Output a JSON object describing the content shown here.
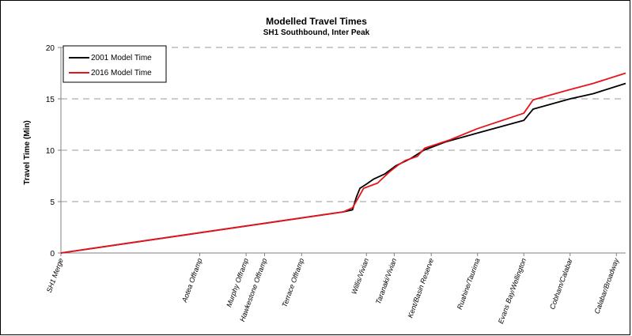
{
  "chart_data": {
    "type": "line",
    "title": "Modelled Travel Times",
    "subtitle": "SH1 Southbound, Inter Peak",
    "ylabel": "Travel Time (Min)",
    "xlabel": "",
    "ylim": [
      0,
      20
    ],
    "yticks": [
      0,
      5,
      10,
      15,
      20
    ],
    "grid": "horizontal dashed",
    "legend_position": "top-left",
    "categories": [
      {
        "label": "SH1 Merge",
        "x": 0.0
      },
      {
        "label": "Aotea Offramp",
        "x": 1.5
      },
      {
        "label": "Murphy Offramp",
        "x": 2.0
      },
      {
        "label": "Hawkestone Offramp",
        "x": 2.2
      },
      {
        "label": "Terrace Offramp",
        "x": 2.6
      },
      {
        "label": "Willis/Vivian",
        "x": 3.3
      },
      {
        "label": "Taranaki/Vivian",
        "x": 3.6
      },
      {
        "label": "Kent/Basin Reserve",
        "x": 4.0
      },
      {
        "label": "Ruahine/Taurima",
        "x": 4.5
      },
      {
        "label": "Evans Bay/Wellington",
        "x": 5.0
      },
      {
        "label": "Cobham/Calabar",
        "x": 5.5
      },
      {
        "label": "Calabar/Broadway",
        "x": 6.0
      }
    ],
    "xlim": [
      0,
      6.1
    ],
    "series": [
      {
        "name": "2001 Model Time",
        "color": "#000000",
        "points": [
          [
            0,
            0
          ],
          [
            3.05,
            4.0
          ],
          [
            3.15,
            4.2
          ],
          [
            3.19,
            5.4
          ],
          [
            3.23,
            6.3
          ],
          [
            3.3,
            6.7
          ],
          [
            3.38,
            7.2
          ],
          [
            3.5,
            7.7
          ],
          [
            3.62,
            8.5
          ],
          [
            3.78,
            9.2
          ],
          [
            3.92,
            10.0
          ],
          [
            4.15,
            10.8
          ],
          [
            4.55,
            11.8
          ],
          [
            5.0,
            12.9
          ],
          [
            5.1,
            14.0
          ],
          [
            5.5,
            15.0
          ],
          [
            5.75,
            15.5
          ],
          [
            6.1,
            16.5
          ]
        ]
      },
      {
        "name": "2016 Model Time",
        "color": "#e8141b",
        "points": [
          [
            0,
            0
          ],
          [
            3.05,
            4.0
          ],
          [
            3.15,
            4.4
          ],
          [
            3.22,
            5.5
          ],
          [
            3.27,
            6.3
          ],
          [
            3.42,
            6.8
          ],
          [
            3.55,
            7.9
          ],
          [
            3.65,
            8.6
          ],
          [
            3.72,
            9.0
          ],
          [
            3.85,
            9.4
          ],
          [
            3.93,
            10.2
          ],
          [
            4.2,
            11.0
          ],
          [
            4.5,
            12.1
          ],
          [
            5.0,
            13.6
          ],
          [
            5.1,
            14.9
          ],
          [
            5.5,
            15.9
          ],
          [
            5.75,
            16.5
          ],
          [
            6.1,
            17.5
          ]
        ]
      }
    ]
  }
}
